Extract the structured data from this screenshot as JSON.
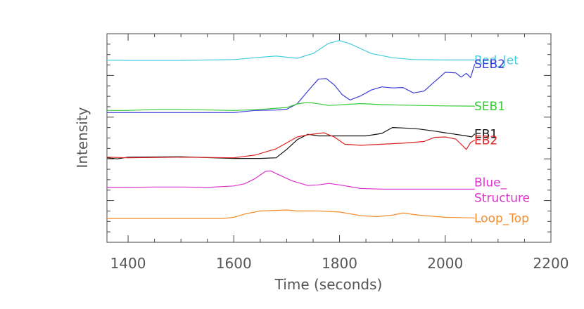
{
  "chart_data": {
    "type": "line",
    "xlabel": "Time (seconds)",
    "ylabel": "Intensity",
    "xlim": [
      1360,
      2200
    ],
    "x_ticks": [
      1400,
      1600,
      1800,
      2000,
      2200
    ],
    "grid": false,
    "legend": "labels at right end of each curve",
    "series": [
      {
        "name": "Red_Jet",
        "color": "#44ccdd",
        "points": [
          [
            1360,
            0.873
          ],
          [
            1400,
            0.872
          ],
          [
            1500,
            0.872
          ],
          [
            1600,
            0.876
          ],
          [
            1640,
            0.885
          ],
          [
            1680,
            0.893
          ],
          [
            1720,
            0.882
          ],
          [
            1750,
            0.905
          ],
          [
            1780,
            0.955
          ],
          [
            1800,
            0.967
          ],
          [
            1820,
            0.952
          ],
          [
            1860,
            0.905
          ],
          [
            1900,
            0.885
          ],
          [
            1940,
            0.876
          ],
          [
            2000,
            0.874
          ],
          [
            2056,
            0.874
          ]
        ]
      },
      {
        "name": "SEB2",
        "color": "#3b3bd6",
        "points": [
          [
            1360,
            0.622
          ],
          [
            1400,
            0.622
          ],
          [
            1500,
            0.622
          ],
          [
            1600,
            0.622
          ],
          [
            1640,
            0.632
          ],
          [
            1680,
            0.634
          ],
          [
            1700,
            0.638
          ],
          [
            1720,
            0.664
          ],
          [
            1740,
            0.725
          ],
          [
            1760,
            0.782
          ],
          [
            1775,
            0.785
          ],
          [
            1790,
            0.755
          ],
          [
            1805,
            0.708
          ],
          [
            1820,
            0.682
          ],
          [
            1840,
            0.702
          ],
          [
            1860,
            0.73
          ],
          [
            1880,
            0.745
          ],
          [
            1900,
            0.74
          ],
          [
            1920,
            0.742
          ],
          [
            1940,
            0.716
          ],
          [
            1960,
            0.725
          ],
          [
            1980,
            0.77
          ],
          [
            2000,
            0.815
          ],
          [
            2020,
            0.812
          ],
          [
            2030,
            0.792
          ],
          [
            2040,
            0.81
          ],
          [
            2048,
            0.79
          ],
          [
            2056,
            0.855
          ]
        ]
      },
      {
        "name": "SEB1",
        "color": "#33cc33",
        "points": [
          [
            1360,
            0.632
          ],
          [
            1400,
            0.632
          ],
          [
            1450,
            0.637
          ],
          [
            1500,
            0.637
          ],
          [
            1600,
            0.632
          ],
          [
            1650,
            0.637
          ],
          [
            1700,
            0.646
          ],
          [
            1720,
            0.663
          ],
          [
            1740,
            0.671
          ],
          [
            1760,
            0.664
          ],
          [
            1780,
            0.656
          ],
          [
            1800,
            0.659
          ],
          [
            1840,
            0.665
          ],
          [
            1880,
            0.66
          ],
          [
            1950,
            0.656
          ],
          [
            2000,
            0.654
          ],
          [
            2056,
            0.653
          ]
        ]
      },
      {
        "name": "EB1",
        "color": "#111111",
        "points": [
          [
            1360,
            0.405
          ],
          [
            1380,
            0.4
          ],
          [
            1400,
            0.408
          ],
          [
            1500,
            0.41
          ],
          [
            1600,
            0.402
          ],
          [
            1650,
            0.402
          ],
          [
            1680,
            0.405
          ],
          [
            1700,
            0.445
          ],
          [
            1720,
            0.492
          ],
          [
            1740,
            0.518
          ],
          [
            1760,
            0.51
          ],
          [
            1800,
            0.51
          ],
          [
            1850,
            0.51
          ],
          [
            1880,
            0.522
          ],
          [
            1900,
            0.55
          ],
          [
            1920,
            0.548
          ],
          [
            1950,
            0.543
          ],
          [
            1980,
            0.533
          ],
          [
            2000,
            0.525
          ],
          [
            2040,
            0.51
          ],
          [
            2050,
            0.505
          ],
          [
            2056,
            0.52
          ]
        ]
      },
      {
        "name": "EB2",
        "color": "#dd2222",
        "points": [
          [
            1360,
            0.408
          ],
          [
            1400,
            0.405
          ],
          [
            1500,
            0.408
          ],
          [
            1600,
            0.405
          ],
          [
            1640,
            0.418
          ],
          [
            1680,
            0.448
          ],
          [
            1720,
            0.505
          ],
          [
            1740,
            0.515
          ],
          [
            1770,
            0.525
          ],
          [
            1790,
            0.505
          ],
          [
            1810,
            0.47
          ],
          [
            1840,
            0.465
          ],
          [
            1880,
            0.47
          ],
          [
            1920,
            0.475
          ],
          [
            1960,
            0.483
          ],
          [
            1980,
            0.503
          ],
          [
            2000,
            0.505
          ],
          [
            2020,
            0.495
          ],
          [
            2040,
            0.445
          ],
          [
            2048,
            0.478
          ],
          [
            2056,
            0.49
          ]
        ]
      },
      {
        "name": "Blue_ Structure",
        "color": "#dd33cc",
        "points": [
          [
            1360,
            0.263
          ],
          [
            1400,
            0.263
          ],
          [
            1450,
            0.265
          ],
          [
            1500,
            0.265
          ],
          [
            1550,
            0.263
          ],
          [
            1600,
            0.27
          ],
          [
            1620,
            0.28
          ],
          [
            1640,
            0.305
          ],
          [
            1660,
            0.34
          ],
          [
            1670,
            0.342
          ],
          [
            1690,
            0.318
          ],
          [
            1710,
            0.295
          ],
          [
            1740,
            0.272
          ],
          [
            1760,
            0.275
          ],
          [
            1780,
            0.282
          ],
          [
            1800,
            0.275
          ],
          [
            1840,
            0.258
          ],
          [
            1880,
            0.255
          ],
          [
            1950,
            0.255
          ],
          [
            2000,
            0.255
          ],
          [
            2056,
            0.255
          ]
        ]
      },
      {
        "name": "Loop_Top",
        "color": "#f58c2b",
        "points": [
          [
            1360,
            0.114
          ],
          [
            1400,
            0.114
          ],
          [
            1500,
            0.114
          ],
          [
            1580,
            0.114
          ],
          [
            1600,
            0.12
          ],
          [
            1620,
            0.135
          ],
          [
            1650,
            0.15
          ],
          [
            1700,
            0.155
          ],
          [
            1720,
            0.15
          ],
          [
            1760,
            0.15
          ],
          [
            1800,
            0.145
          ],
          [
            1840,
            0.128
          ],
          [
            1870,
            0.123
          ],
          [
            1900,
            0.13
          ],
          [
            1920,
            0.14
          ],
          [
            1950,
            0.13
          ],
          [
            2000,
            0.12
          ],
          [
            2056,
            0.117
          ]
        ]
      }
    ]
  }
}
